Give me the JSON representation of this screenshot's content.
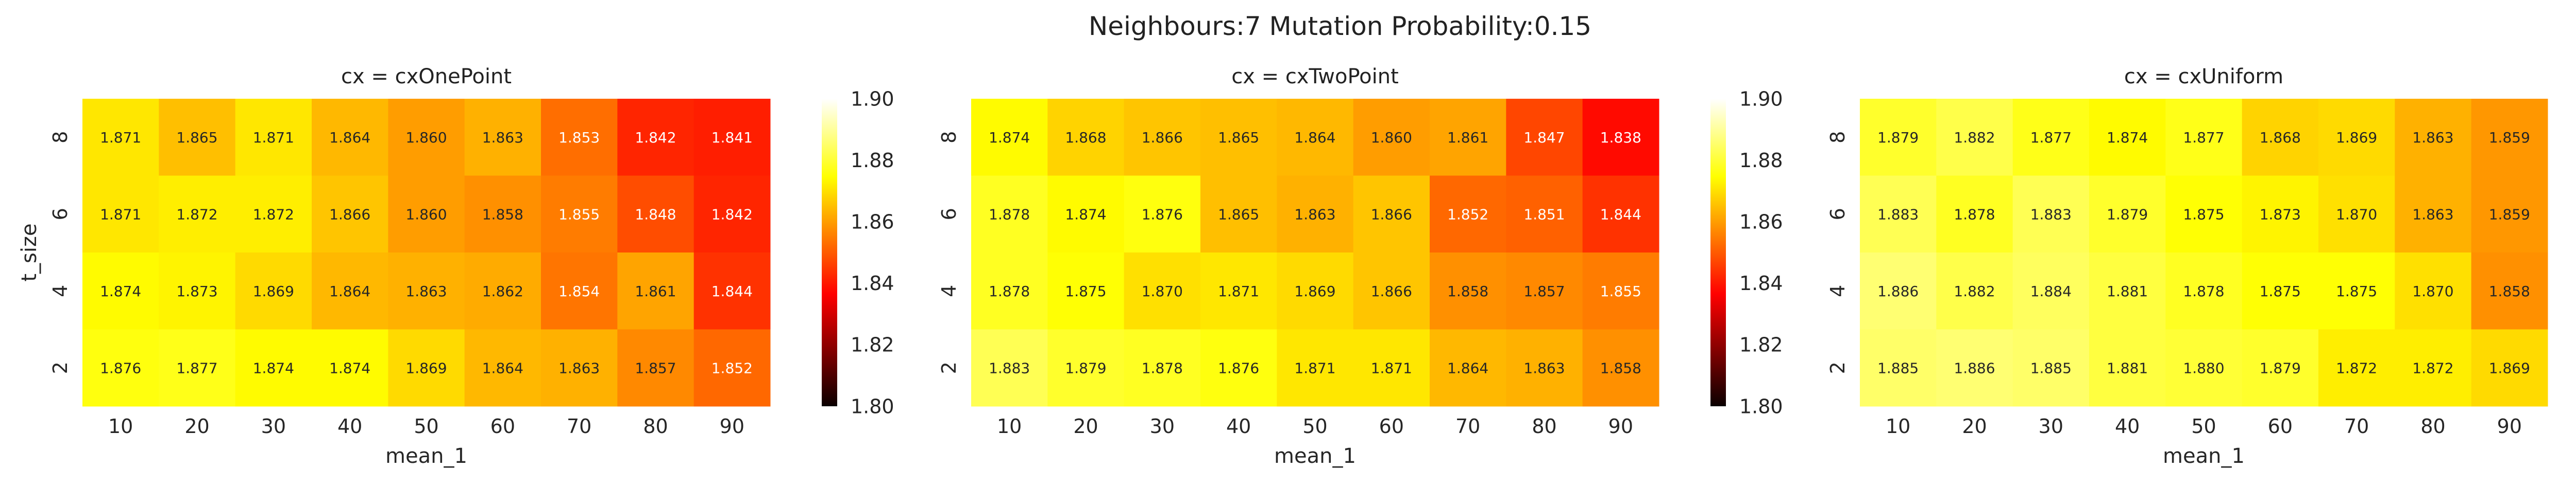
{
  "figure": {
    "suptitle": "Neighbours:7 Mutation Probability:0.15"
  },
  "colormap": {
    "name": "hot",
    "vmin": 1.8,
    "vmax": 1.9,
    "colorbar_ticks": [
      "1.80",
      "1.82",
      "1.84",
      "1.86",
      "1.88",
      "1.90"
    ]
  },
  "chart_data": [
    {
      "type": "heatmap",
      "title": "cx = cxOnePoint",
      "xlabel": "mean_1",
      "ylabel": "t_size",
      "x": [
        "10",
        "20",
        "30",
        "40",
        "50",
        "60",
        "70",
        "80",
        "90"
      ],
      "y": [
        "8",
        "6",
        "4",
        "2"
      ],
      "values": [
        [
          1.871,
          1.865,
          1.871,
          1.864,
          1.86,
          1.863,
          1.853,
          1.842,
          1.841
        ],
        [
          1.871,
          1.872,
          1.872,
          1.866,
          1.86,
          1.858,
          1.855,
          1.848,
          1.842
        ],
        [
          1.874,
          1.873,
          1.869,
          1.864,
          1.863,
          1.862,
          1.854,
          1.861,
          1.844
        ],
        [
          1.876,
          1.877,
          1.874,
          1.874,
          1.869,
          1.864,
          1.863,
          1.857,
          1.852
        ]
      ]
    },
    {
      "type": "heatmap",
      "title": "cx = cxTwoPoint",
      "xlabel": "mean_1",
      "ylabel": "",
      "x": [
        "10",
        "20",
        "30",
        "40",
        "50",
        "60",
        "70",
        "80",
        "90"
      ],
      "y": [
        "8",
        "6",
        "4",
        "2"
      ],
      "values": [
        [
          1.874,
          1.868,
          1.866,
          1.865,
          1.864,
          1.86,
          1.861,
          1.847,
          1.838
        ],
        [
          1.878,
          1.874,
          1.876,
          1.865,
          1.863,
          1.866,
          1.852,
          1.851,
          1.844
        ],
        [
          1.878,
          1.875,
          1.87,
          1.871,
          1.869,
          1.866,
          1.858,
          1.857,
          1.855
        ],
        [
          1.883,
          1.879,
          1.878,
          1.876,
          1.871,
          1.871,
          1.864,
          1.863,
          1.858
        ]
      ]
    },
    {
      "type": "heatmap",
      "title": "cx = cxUniform",
      "xlabel": "mean_1",
      "ylabel": "",
      "x": [
        "10",
        "20",
        "30",
        "40",
        "50",
        "60",
        "70",
        "80",
        "90"
      ],
      "y": [
        "8",
        "6",
        "4",
        "2"
      ],
      "values": [
        [
          1.879,
          1.882,
          1.877,
          1.874,
          1.877,
          1.868,
          1.869,
          1.863,
          1.859
        ],
        [
          1.883,
          1.878,
          1.883,
          1.879,
          1.875,
          1.873,
          1.87,
          1.863,
          1.859
        ],
        [
          1.886,
          1.882,
          1.884,
          1.881,
          1.878,
          1.875,
          1.875,
          1.87,
          1.858
        ],
        [
          1.885,
          1.886,
          1.885,
          1.881,
          1.88,
          1.879,
          1.872,
          1.872,
          1.869
        ]
      ]
    }
  ]
}
